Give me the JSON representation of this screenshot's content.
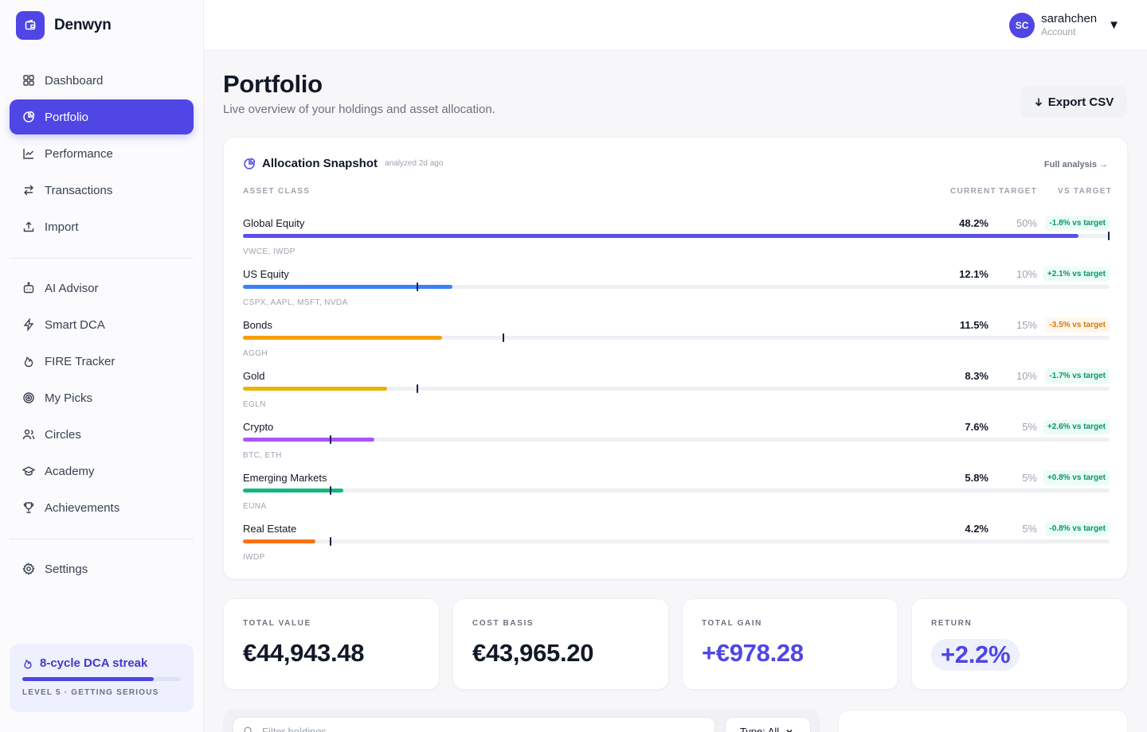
{
  "brand": {
    "name": "Denwyn"
  },
  "nav": {
    "items": [
      {
        "label": "Dashboard",
        "icon": "grid-icon"
      },
      {
        "label": "Portfolio",
        "icon": "pie-chart-icon"
      },
      {
        "label": "Performance",
        "icon": "line-chart-icon"
      },
      {
        "label": "Transactions",
        "icon": "arrows-swap-icon"
      },
      {
        "label": "Import",
        "icon": "upload-icon"
      }
    ],
    "items2": [
      {
        "label": "AI Advisor",
        "icon": "robot-icon"
      },
      {
        "label": "Smart DCA",
        "icon": "bolt-icon"
      },
      {
        "label": "FIRE Tracker",
        "icon": "flame-icon"
      },
      {
        "label": "My Picks",
        "icon": "target-icon"
      },
      {
        "label": "Circles",
        "icon": "users-icon"
      },
      {
        "label": "Academy",
        "icon": "graduation-cap-icon"
      },
      {
        "label": "Achievements",
        "icon": "trophy-icon"
      }
    ],
    "items3": [
      {
        "label": "Settings",
        "icon": "gear-icon"
      }
    ],
    "active": "Portfolio"
  },
  "streak": {
    "title": "8-cycle DCA streak",
    "subtitle": "LEVEL 5 · GETTING SERIOUS",
    "progress": 0.83
  },
  "user": {
    "initials": "SC",
    "name": "sarahchen",
    "role": "Account"
  },
  "header": {
    "title": "Portfolio",
    "subtitle": "Live overview of your holdings and asset allocation.",
    "export_label": "Export CSV"
  },
  "allocation": {
    "title": "Allocation Snapshot",
    "analyzed": "analyzed 2d ago",
    "full_link": "Full analysis →",
    "columns": {
      "asset": "ASSET CLASS",
      "current": "CURRENT",
      "target": "TARGET",
      "vs": "VS TARGET"
    },
    "rows": [
      {
        "name": "Global Equity",
        "current": "48.2%",
        "target": "50%",
        "delta": "-1.8% vs target",
        "tickers": "VWCE, IWDP",
        "current_value": 48.2,
        "target_value": 50,
        "color": "#5b50e6",
        "status": "green"
      },
      {
        "name": "US Equity",
        "current": "12.1%",
        "target": "10%",
        "delta": "+2.1% vs target",
        "tickers": "CSPX, AAPL, MSFT, NVDA",
        "current_value": 12.1,
        "target_value": 10,
        "color": "#3b82f6",
        "status": "green"
      },
      {
        "name": "Bonds",
        "current": "11.5%",
        "target": "15%",
        "delta": "-3.5% vs target",
        "tickers": "AGGH",
        "current_value": 11.5,
        "target_value": 15,
        "color": "#f59e0b",
        "status": "amber"
      },
      {
        "name": "Gold",
        "current": "8.3%",
        "target": "10%",
        "delta": "-1.7% vs target",
        "tickers": "EGLN",
        "current_value": 8.3,
        "target_value": 10,
        "color": "#eab308",
        "status": "green"
      },
      {
        "name": "Crypto",
        "current": "7.6%",
        "target": "5%",
        "delta": "+2.6% vs target",
        "tickers": "BTC, ETH",
        "current_value": 7.6,
        "target_value": 5,
        "color": "#a855f7",
        "status": "green"
      },
      {
        "name": "Emerging Markets",
        "current": "5.8%",
        "target": "5%",
        "delta": "+0.8% vs target",
        "tickers": "EUNA",
        "current_value": 5.8,
        "target_value": 5,
        "color": "#10b981",
        "status": "green"
      },
      {
        "name": "Real Estate",
        "current": "4.2%",
        "target": "5%",
        "delta": "-0.8% vs target",
        "tickers": "IWDP",
        "current_value": 4.2,
        "target_value": 5,
        "color": "#f97316",
        "status": "green"
      }
    ]
  },
  "stats": {
    "total_value": {
      "label": "TOTAL VALUE",
      "value": "€44,943.48"
    },
    "cost_basis": {
      "label": "COST BASIS",
      "value": "€43,965.20"
    },
    "total_gain": {
      "label": "TOTAL GAIN",
      "value": "+€978.28"
    },
    "return": {
      "label": "RETURN",
      "value": "+2.2%"
    }
  },
  "holdings": {
    "filter_placeholder": "Filter holdings...",
    "type_label": "Type: All"
  }
}
